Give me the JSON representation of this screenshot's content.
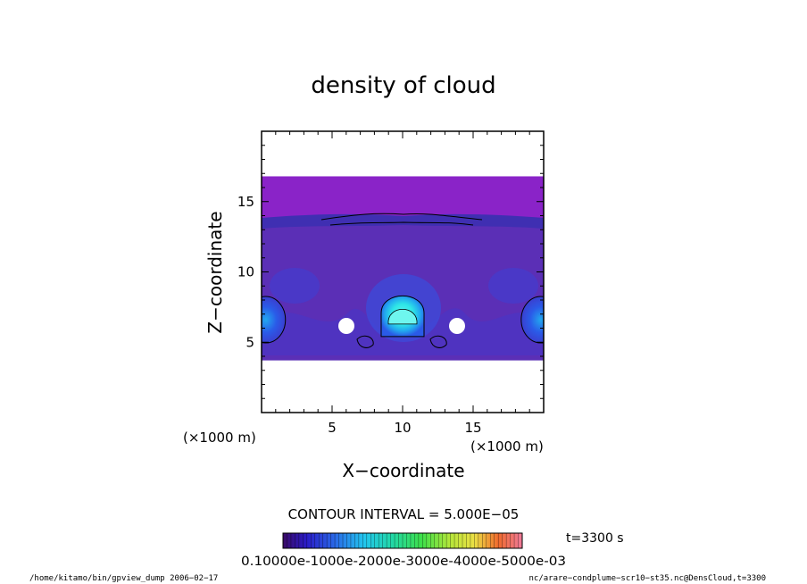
{
  "chart_data": {
    "type": "heatmap",
    "title": "density of cloud",
    "xlabel": "X−coordinate",
    "ylabel": "Z−coordinate",
    "x_unit": "(×1000 m)",
    "y_unit": "(×1000 m)",
    "xlim": [
      0,
      20
    ],
    "ylim": [
      0,
      20
    ],
    "x_ticks": [
      "5",
      "10",
      "15"
    ],
    "y_ticks": [
      "5",
      "10",
      "15"
    ],
    "cloud_layer": {
      "bottom": 3.7,
      "top": 16.8
    },
    "contour_interval": "CONTOUR INTERVAL = 5.000E−05",
    "time_label": "t=3300 s",
    "colorbar_labels": [
      "0.1000",
      "0.1000e−03",
      "0.2000e−03",
      "0.3000e−03",
      "0.4000e−03",
      "0.5000e−03"
    ],
    "colorbar_overlap_text": "0.10000e-1000e-2000e-3000e-4000e-5000e-03",
    "blobs": [
      {
        "x": 10.0,
        "z": 6.8,
        "level": 0.55
      },
      {
        "x": 0.3,
        "z": 6.6,
        "level": 0.4
      },
      {
        "x": 19.8,
        "z": 6.6,
        "level": 0.4
      }
    ],
    "colors": {
      "upper_layer": "#8a23c8",
      "main_body": "#5b2fb6",
      "blue": "#2a5be8",
      "cyan": "#2ee6e6",
      "contour": "#000000"
    }
  },
  "footer": {
    "left": "/home/kitamo/bin/gpview_dump  2006−02−17",
    "right": "nc/arare−condplume−scr10−st35.nc@DensCloud,t=3300"
  }
}
